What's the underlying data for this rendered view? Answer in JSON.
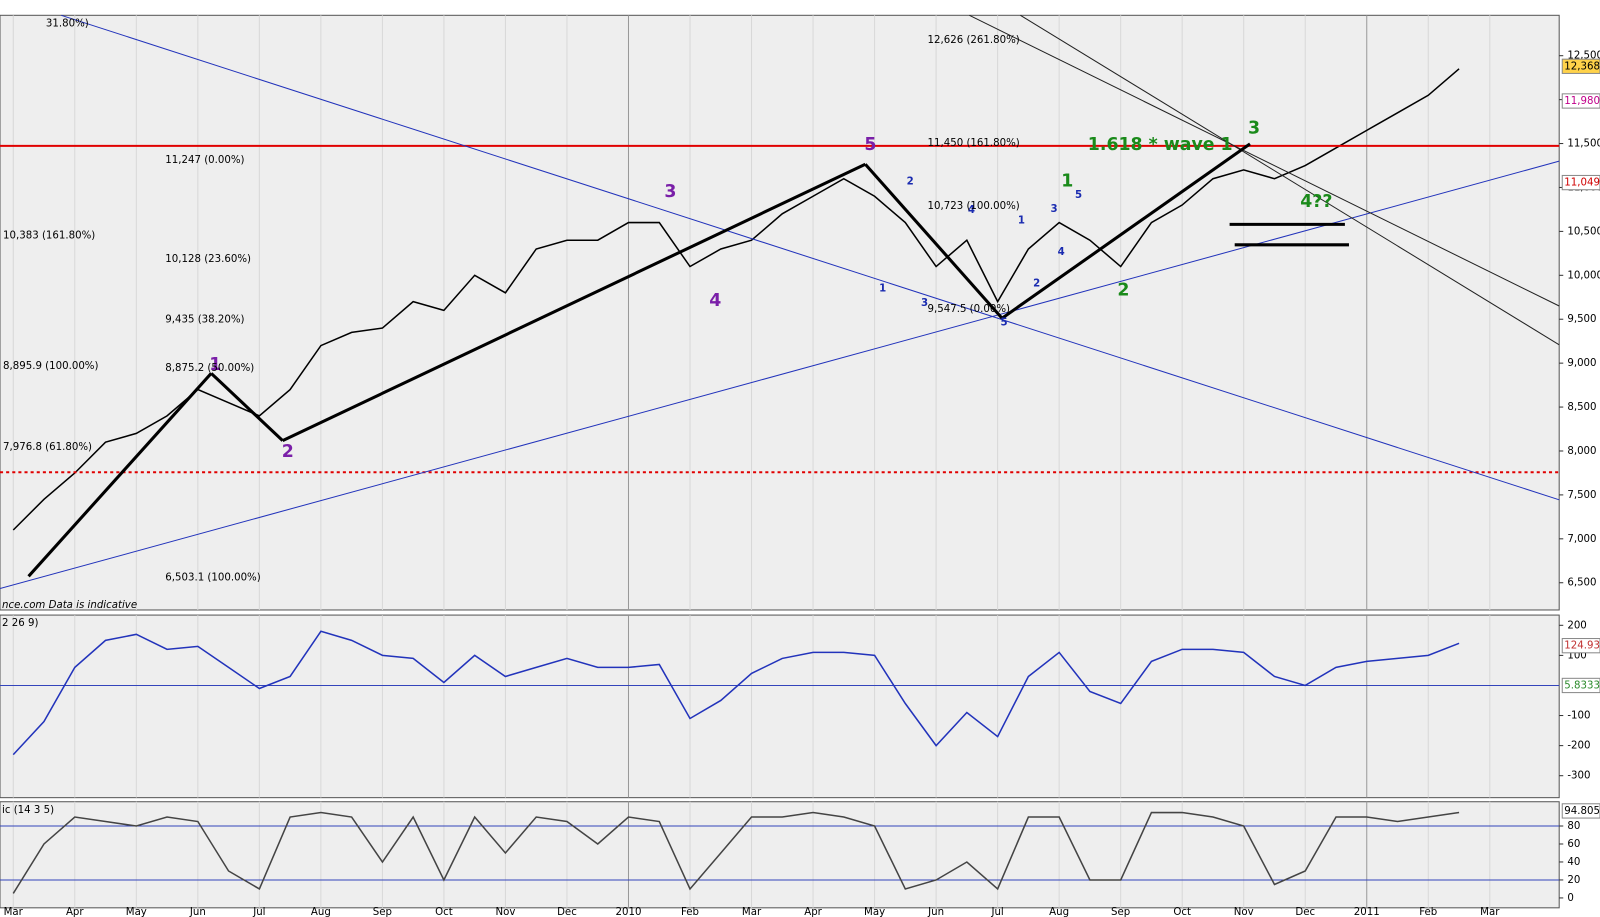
{
  "chart_data": [
    {
      "type": "line",
      "color": "#000000",
      "ylim": [
        6190,
        12960
      ],
      "yticks": [
        {
          "value": 6500,
          "label": "6,500"
        },
        {
          "value": 7000,
          "label": "7,000"
        },
        {
          "value": 7500,
          "label": "7,500"
        },
        {
          "value": 8000,
          "label": "8,000"
        },
        {
          "value": 8500,
          "label": "8,500"
        },
        {
          "value": 9000,
          "label": "9,000"
        },
        {
          "value": 9500,
          "label": "9,500"
        },
        {
          "value": 10000,
          "label": "10,000"
        },
        {
          "value": 10500,
          "label": "10,500"
        },
        {
          "value": 11000,
          "label": "11,000"
        },
        {
          "value": 11500,
          "label": "11,500"
        },
        {
          "value": 12000,
          "label": "12,000"
        },
        {
          "value": 12500,
          "label": "12,500"
        }
      ],
      "values": [
        7100,
        7450,
        7750,
        8100,
        8200,
        8400,
        8700,
        8550,
        8400,
        8700,
        9200,
        9350,
        9400,
        9700,
        9600,
        10000,
        9800,
        10300,
        10400,
        10400,
        10600,
        10600,
        10100,
        10300,
        10400,
        10700,
        10900,
        11100,
        10900,
        10600,
        10100,
        10400,
        9700,
        10300,
        10600,
        10400,
        10100,
        10600,
        10800,
        11100,
        11200,
        11100,
        11250,
        11450,
        11650,
        11850,
        12050,
        12350,
        null
      ],
      "corner_text": "31.80%)",
      "source": "nce.com  Data is indicative",
      "wave_labels": [
        "1",
        "2",
        "3",
        "4",
        "5"
      ],
      "green_wave_labels": [
        "1",
        "2",
        "3",
        "4??"
      ],
      "minor_wave_labels": [
        "1",
        "2",
        "3",
        "4",
        "5",
        "1",
        "2",
        "3",
        "4",
        "5"
      ],
      "note": "1.618 * wave 1",
      "fib_labels": [
        "12,626 (261.80%)",
        "11,450 (161.80%)",
        "11,247 (0.00%)",
        "10,383 (161.80%)",
        "10,128 (23.60%)",
        "9,435 (38.20%)",
        "8,895.9 (100.00%)",
        "8,875.2 (50.00%)",
        "7,976.8 (61.80%)",
        "6,503.1 (100.00%)",
        "10,723 (100.00%)",
        "9,547.5 (0.00%)"
      ],
      "tags": [
        "12,368",
        "11,980",
        "11,049"
      ]
    },
    {
      "type": "line",
      "title": "2 26 9)",
      "color": "#2233bb",
      "ylim": [
        -373,
        234
      ],
      "yticks": [
        -300,
        -200,
        -100,
        100,
        200
      ],
      "values": [
        -230,
        -120,
        60,
        150,
        170,
        120,
        130,
        60,
        -10,
        30,
        180,
        150,
        100,
        90,
        10,
        100,
        30,
        60,
        90,
        60,
        60,
        70,
        -110,
        -50,
        40,
        90,
        110,
        110,
        100,
        -60,
        -200,
        -90,
        -170,
        30,
        110,
        -20,
        -60,
        80,
        120,
        120,
        110,
        30,
        0,
        60,
        80,
        90,
        100,
        140,
        null
      ],
      "tags": [
        "124.93",
        "5.8333"
      ]
    },
    {
      "type": "line",
      "title": "ic (14 3 5)",
      "color": "#444444",
      "ylim": [
        -11,
        107
      ],
      "yticks": [
        0,
        20,
        40,
        60,
        80
      ],
      "bands": [
        20,
        80
      ],
      "categories": [
        "Mar",
        null,
        "Apr",
        null,
        "May",
        null,
        "Jun",
        null,
        "Jul",
        null,
        "Aug",
        null,
        "Sep",
        null,
        "Oct",
        null,
        "Nov",
        null,
        "Dec",
        null,
        "2010",
        null,
        "Feb",
        null,
        "Mar",
        null,
        "Apr",
        null,
        "May",
        null,
        "Jun",
        null,
        "Jul",
        null,
        "Aug",
        null,
        "Sep",
        null,
        "Oct",
        null,
        "Nov",
        null,
        "Dec",
        null,
        "2011",
        null,
        "Feb",
        null,
        "Mar"
      ],
      "values": [
        5,
        60,
        90,
        85,
        80,
        90,
        85,
        30,
        10,
        90,
        95,
        90,
        40,
        90,
        20,
        90,
        50,
        90,
        85,
        60,
        90,
        85,
        10,
        50,
        90,
        90,
        95,
        90,
        80,
        10,
        20,
        40,
        10,
        90,
        90,
        20,
        20,
        95,
        95,
        90,
        80,
        15,
        30,
        90,
        90,
        85,
        90,
        95,
        null
      ],
      "tags": [
        "94.805"
      ]
    }
  ]
}
